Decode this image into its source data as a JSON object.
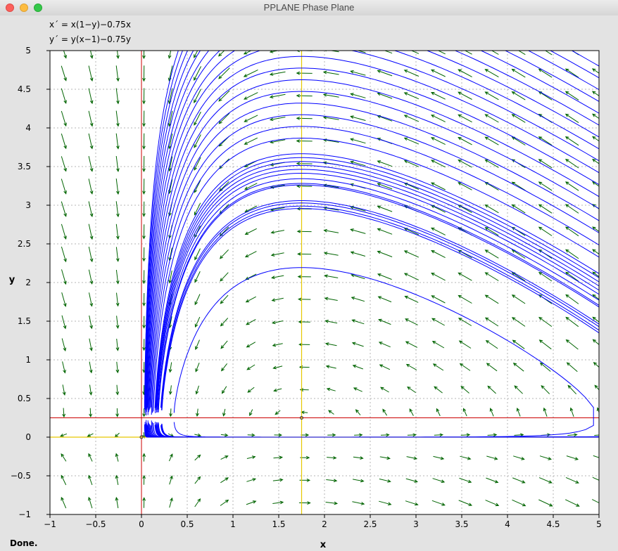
{
  "window": {
    "title": "PPLANE Phase Plane"
  },
  "equations": {
    "xprime": "x´ = x(1−y)−0.75x",
    "yprime": "y´ = y(x−1)−0.75y"
  },
  "status": {
    "text": "Done."
  },
  "colors": {
    "trajectory": "#0000ff",
    "vector_field": "#006400",
    "x_nullcline": "#cc0000",
    "y_nullcline": "#e6c800",
    "grid": "#b4b4b4"
  },
  "chart_data": {
    "type": "scatter",
    "xlabel": "x",
    "ylabel": "y",
    "xlim": [
      -1,
      5
    ],
    "ylim": [
      -1,
      5
    ],
    "xticks": [
      -1,
      -0.5,
      0,
      0.5,
      1,
      1.5,
      2,
      2.5,
      3,
      3.5,
      4,
      4.5,
      5
    ],
    "yticks": [
      -1,
      -0.5,
      0,
      0.5,
      1,
      1.5,
      2,
      2.5,
      3,
      3.5,
      4,
      4.5,
      5
    ],
    "xtick_labels": [
      "−1",
      "−0.5",
      "0",
      "0.5",
      "1",
      "1.5",
      "2",
      "2.5",
      "3",
      "3.5",
      "4",
      "4.5",
      "5"
    ],
    "ytick_labels": [
      "−1",
      "−0.5",
      "0",
      "0.5",
      "1",
      "1.5",
      "2",
      "2.5",
      "3",
      "3.5",
      "4",
      "4.5",
      "5"
    ],
    "grid": true,
    "system": {
      "a": 0.75,
      "c": 0.75
    },
    "nullclines": {
      "x_vertical": 0,
      "x_horizontal": 0.25,
      "y_vertical": 1.75,
      "y_horizontal": 0
    },
    "equilibria": [
      [
        0,
        0
      ],
      [
        1.75,
        0.25
      ]
    ],
    "trajectory_levels": [
      2.75,
      3.5,
      3.53,
      3.57,
      3.6,
      3.8,
      3.82,
      3.88,
      3.95,
      4.0,
      4.05,
      4.1,
      4.15,
      4.2,
      4.4,
      4.55,
      4.7,
      4.85,
      5.0,
      5.15,
      5.3,
      5.45,
      5.6,
      5.75,
      5.9,
      6.05,
      6.2,
      6.35,
      6.5,
      6.65,
      6.8
    ]
  }
}
